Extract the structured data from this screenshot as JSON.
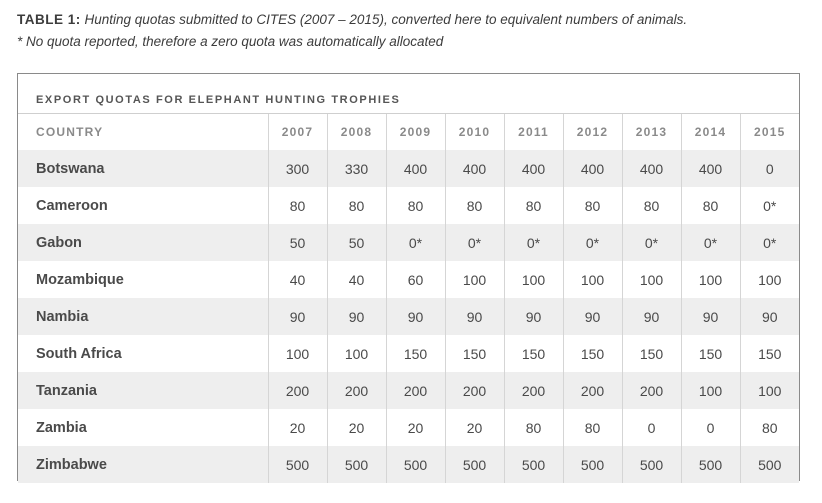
{
  "caption": {
    "label": "TABLE 1:",
    "text": "Hunting quotas submitted to CITES (2007 – 2015), converted here to equivalent numbers of animals.",
    "note": "* No quota reported, therefore a zero quota was automatically allocated"
  },
  "table": {
    "title": "EXPORT QUOTAS FOR ELEPHANT HUNTING TROPHIES",
    "header_country": "COUNTRY",
    "years": [
      "2007",
      "2008",
      "2009",
      "2010",
      "2011",
      "2012",
      "2013",
      "2014",
      "2015"
    ],
    "rows": [
      {
        "country": "Botswana",
        "values": [
          "300",
          "330",
          "400",
          "400",
          "400",
          "400",
          "400",
          "400",
          "0"
        ]
      },
      {
        "country": "Cameroon",
        "values": [
          "80",
          "80",
          "80",
          "80",
          "80",
          "80",
          "80",
          "80",
          "0*"
        ]
      },
      {
        "country": "Gabon",
        "values": [
          "50",
          "50",
          "0*",
          "0*",
          "0*",
          "0*",
          "0*",
          "0*",
          "0*"
        ]
      },
      {
        "country": "Mozambique",
        "values": [
          "40",
          "40",
          "60",
          "100",
          "100",
          "100",
          "100",
          "100",
          "100"
        ]
      },
      {
        "country": "Nambia",
        "values": [
          "90",
          "90",
          "90",
          "90",
          "90",
          "90",
          "90",
          "90",
          "90"
        ]
      },
      {
        "country": "South Africa",
        "values": [
          "100",
          "100",
          "150",
          "150",
          "150",
          "150",
          "150",
          "150",
          "150"
        ]
      },
      {
        "country": "Tanzania",
        "values": [
          "200",
          "200",
          "200",
          "200",
          "200",
          "200",
          "200",
          "100",
          "100"
        ]
      },
      {
        "country": "Zambia",
        "values": [
          "20",
          "20",
          "20",
          "20",
          "80",
          "80",
          "0",
          "0",
          "80"
        ]
      },
      {
        "country": "Zimbabwe",
        "values": [
          "500",
          "500",
          "500",
          "500",
          "500",
          "500",
          "500",
          "500",
          "500"
        ]
      }
    ]
  }
}
